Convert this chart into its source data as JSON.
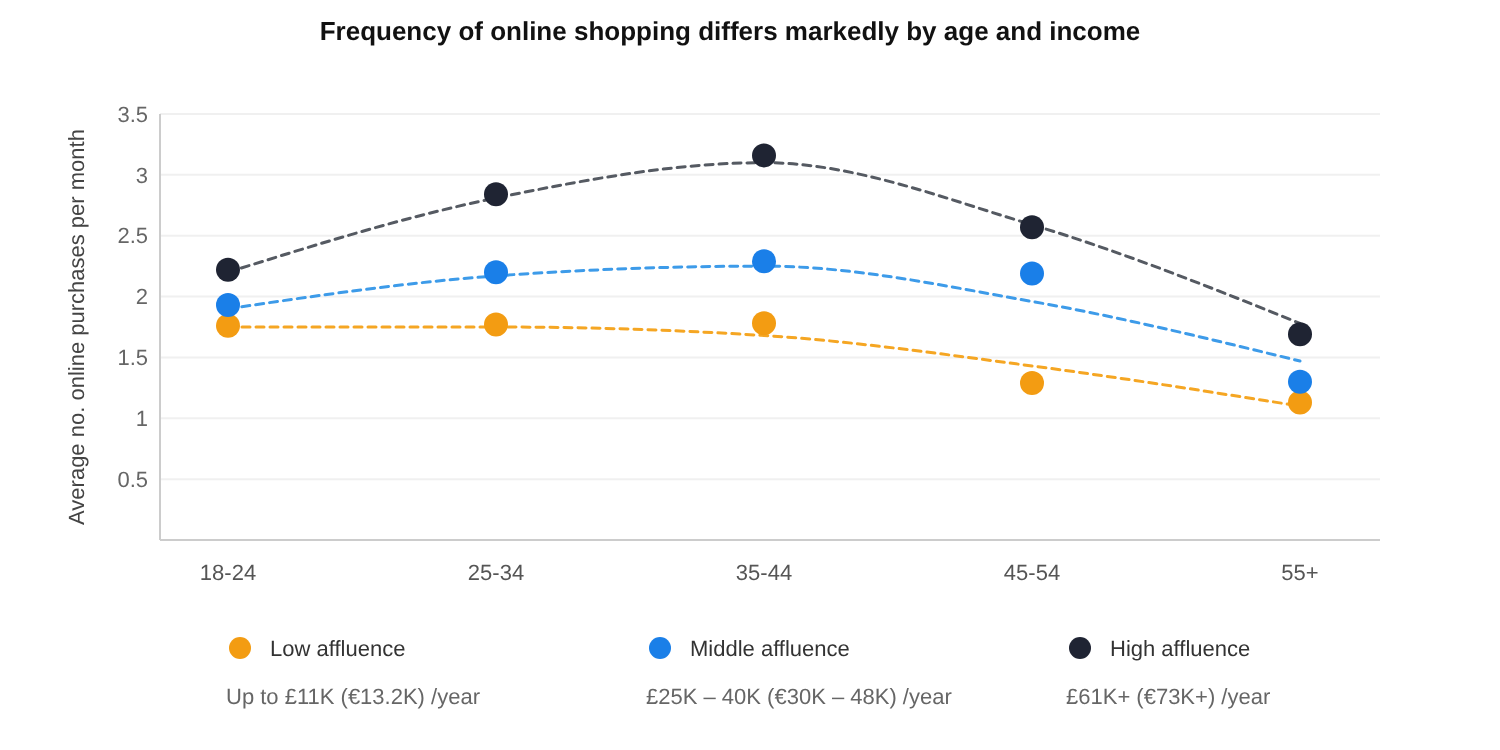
{
  "chart_data": {
    "type": "scatter",
    "title": "Frequency of online shopping differs markedly by age and income",
    "ylabel": "Average no. online purchases per month",
    "categories": [
      "18-24",
      "25-34",
      "35-44",
      "45-54",
      "55+"
    ],
    "series": [
      {
        "type": "line",
        "color": "#f5a623",
        "line_style": "dashed",
        "marker": "none",
        "values": [
          1.75,
          1.75,
          1.68,
          1.43,
          1.1
        ]
      },
      {
        "type": "line",
        "color": "#3d9be9",
        "line_style": "dashed",
        "marker": "none",
        "values": [
          1.9,
          2.17,
          2.25,
          1.96,
          1.47
        ]
      },
      {
        "type": "line",
        "color": "#555a62",
        "line_style": "dashed",
        "marker": "none",
        "values": [
          2.2,
          2.81,
          3.1,
          2.59,
          1.78
        ]
      },
      {
        "name": "Low affluence",
        "color": "#f39c12",
        "marker": "circle",
        "values": [
          1.76,
          1.77,
          1.78,
          1.29,
          1.13
        ]
      },
      {
        "name": "Middle affluence",
        "color": "#1a7fe8",
        "marker": "circle",
        "values": [
          1.93,
          2.2,
          2.29,
          2.19,
          1.3
        ]
      },
      {
        "name": "High affluence",
        "color": "#1f2433",
        "marker": "circle",
        "values": [
          2.22,
          2.84,
          3.16,
          2.57,
          1.69
        ]
      }
    ],
    "annotations": [
      "Up to £11K (€13.2K) /year",
      "£25K – 40K (€30K – 48K) /year",
      "£61K+ (€73K+) /year"
    ],
    "ylim": [
      0,
      3.5
    ],
    "yticks": [
      {
        "value": 0,
        "label": null
      },
      0.5,
      1,
      1.5,
      2,
      2.5,
      3,
      3.5
    ],
    "grid": "y",
    "legend": "bottom"
  }
}
